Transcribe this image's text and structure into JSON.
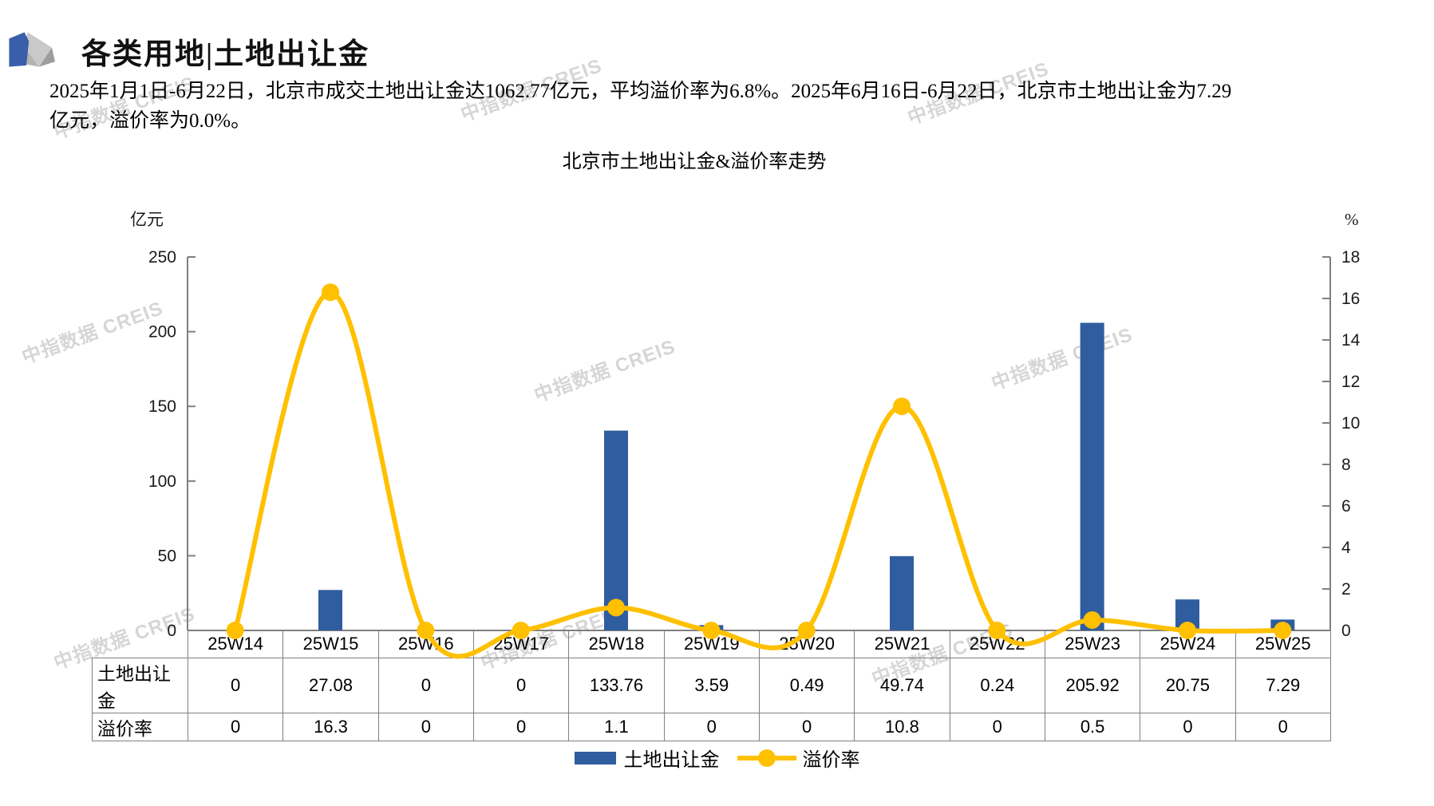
{
  "header": {
    "title": "各类用地|土地出让金"
  },
  "summary": {
    "lines": [
      "2025年1月1日-6月22日，北京市成交土地出让金达1062.77亿元，平均溢价率为6.8%。2025年6月16日-6月22日，北京市土地出让金为7.29",
      "亿元，溢价率为0.0%。"
    ]
  },
  "watermark_text": "中指数据 CREIS",
  "chart_data": {
    "type": "bar",
    "title": "北京市土地出让金&溢价率走势",
    "categories": [
      "25W14",
      "25W15",
      "25W16",
      "25W17",
      "25W18",
      "25W19",
      "25W20",
      "25W21",
      "25W22",
      "25W23",
      "25W24",
      "25W25"
    ],
    "series": [
      {
        "name": "土地出让金",
        "type": "bar",
        "axis": "left",
        "color": "#2F5D9F",
        "values": [
          0,
          27.08,
          0,
          0,
          133.76,
          3.59,
          0.49,
          49.74,
          0.24,
          205.92,
          20.75,
          7.29
        ]
      },
      {
        "name": "溢价率",
        "type": "line",
        "axis": "right",
        "color": "#FFC000",
        "values": [
          0,
          16.3,
          0,
          0,
          1.1,
          0,
          0,
          10.8,
          0,
          0.5,
          0,
          0
        ]
      }
    ],
    "left_axis": {
      "label": "亿元",
      "min": 0,
      "max": 250,
      "step": 50
    },
    "right_axis": {
      "label": "%",
      "min": 0,
      "max": 18,
      "step": 2
    },
    "axis_color": "#7f7f7f",
    "grid": false,
    "legend_position": "bottom"
  },
  "table": {
    "row_labels": [
      "土地出让金",
      "溢价率"
    ],
    "rows": [
      [
        "0",
        "27.08",
        "0",
        "0",
        "133.76",
        "3.59",
        "0.49",
        "49.74",
        "0.24",
        "205.92",
        "20.75",
        "7.29"
      ],
      [
        "0",
        "16.3",
        "0",
        "0",
        "1.1",
        "0",
        "0",
        "10.8",
        "0",
        "0.5",
        "0",
        "0"
      ]
    ]
  }
}
